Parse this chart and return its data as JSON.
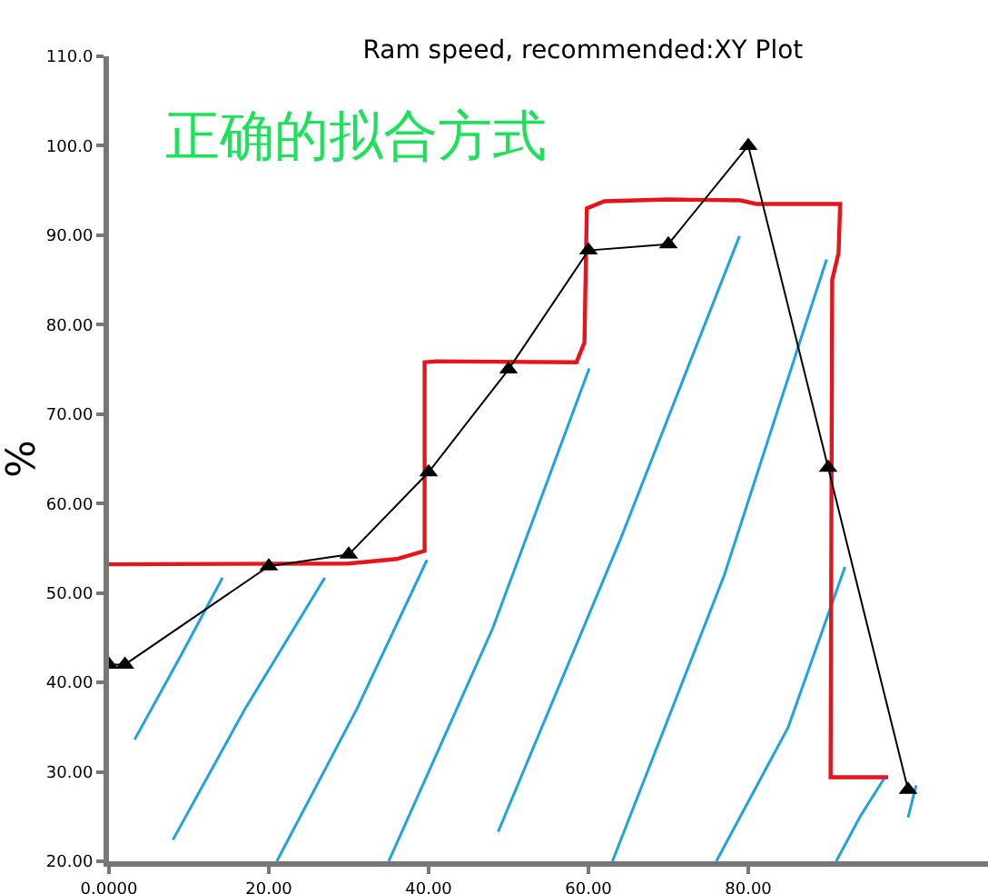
{
  "chart_data": {
    "type": "line",
    "title": "Ram speed, recommended:XY Plot",
    "ylabel": "%",
    "annotations": [
      "正确的拟合方式"
    ],
    "xlim": [
      0,
      110
    ],
    "xticks": [
      {
        "value": 0,
        "label": "0.0000"
      },
      {
        "value": 20,
        "label": "20.00"
      },
      {
        "value": 40,
        "label": "40.00"
      },
      {
        "value": 60,
        "label": "60.00"
      },
      {
        "value": 80,
        "label": "80.00"
      }
    ],
    "ylim": [
      20,
      110
    ],
    "yticks": [
      {
        "value": 20,
        "label": "20.00"
      },
      {
        "value": 30,
        "label": "30.00"
      },
      {
        "value": 40,
        "label": "40.00"
      },
      {
        "value": 50,
        "label": "50.00"
      },
      {
        "value": 60,
        "label": "60.00"
      },
      {
        "value": 70,
        "label": "70.00"
      },
      {
        "value": 80,
        "label": "80.00"
      },
      {
        "value": 90,
        "label": "90.00"
      },
      {
        "value": 100,
        "label": "100.0"
      },
      {
        "value": 110,
        "label": "110.0"
      }
    ],
    "grid": false,
    "legend": false,
    "series": [
      {
        "color": "#1fa3e0",
        "marker": "none",
        "x": [
          3.2,
          9,
          14.2,
          null,
          8,
          17,
          27,
          null,
          21,
          31,
          39.8,
          null,
          35,
          48,
          60.1,
          null,
          48.7,
          64,
          78.9,
          null,
          63,
          77,
          89.8,
          null,
          76,
          85,
          92.1,
          null,
          91,
          94,
          97.1,
          null,
          100,
          101
        ],
        "values": [
          33.6,
          43,
          51.7,
          null,
          22.4,
          37,
          51.7,
          null,
          20,
          37,
          53.7,
          null,
          20,
          46,
          75.1,
          null,
          23.3,
          56,
          89.9,
          null,
          20,
          52,
          87.3,
          null,
          20,
          35,
          52.9,
          null,
          20,
          25,
          29.4,
          null,
          24.9,
          28.5
        ]
      },
      {
        "color": "#e8141c",
        "marker": "none",
        "x": [
          0,
          30,
          36,
          39.5,
          39.5,
          41,
          58.5,
          59.5,
          59.7,
          59.8,
          62,
          70,
          79,
          81,
          91.5,
          91.3,
          90.5,
          90.3,
          97.5
        ],
        "values": [
          53.2,
          53.3,
          53.8,
          54.7,
          75.8,
          75.9,
          75.8,
          78,
          88,
          93,
          93.8,
          94,
          93.9,
          93.5,
          93.5,
          88,
          85,
          29.4,
          29.4
        ]
      },
      {
        "color": "#000000",
        "marker": "triangle",
        "x": [
          0,
          2,
          20,
          30,
          40,
          50,
          60,
          70,
          80,
          90,
          100
        ],
        "values": [
          42,
          42,
          53,
          54.3,
          63.5,
          75,
          88.3,
          89,
          100,
          64,
          28
        ]
      }
    ]
  }
}
